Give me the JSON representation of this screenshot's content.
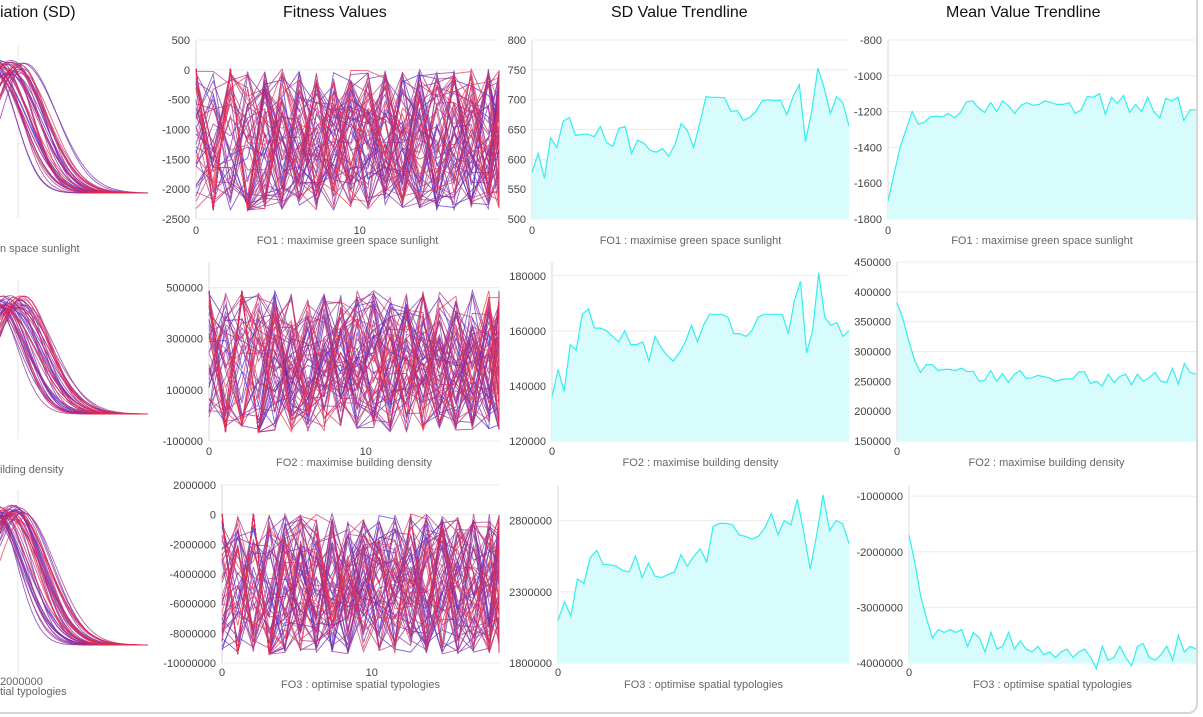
{
  "columns": {
    "sd_title": "iation (SD)",
    "fitness_title": "Fitness Values",
    "sd_trend_title": "SD Value Trendline",
    "mean_trend_title": "Mean Value Trendline"
  },
  "colors": {
    "trend": "#33eeee",
    "trend_fill": "#d8fbfb",
    "lines_blue": "#3a2ad8",
    "lines_red": "#e03a5a"
  },
  "sd_panels": [
    {
      "xlabel": "n space sunlight"
    },
    {
      "xlabel": "ilding density"
    },
    {
      "xlabel": "tial typologies",
      "tick": "2000000"
    }
  ],
  "chart_data": [
    {
      "type": "line",
      "title": "Fitness Values",
      "objective": "FO1",
      "xlabel": "FO1 : maximise green space sunlight",
      "yticks": [
        "500",
        "0",
        "-500",
        "-1000",
        "-1500",
        "-2000",
        "-2500"
      ],
      "ylim": [
        -2500,
        500
      ],
      "xticks": [
        "0",
        "10"
      ],
      "xlim": [
        0,
        18.5
      ],
      "n_lines": 60
    },
    {
      "type": "area",
      "title": "SD Value Trendline",
      "objective": "FO1",
      "xlabel": "FO1 : maximise green space sunlight",
      "yticks": [
        "800",
        "750",
        "700",
        "650",
        "600",
        "550",
        "500"
      ],
      "ylim": [
        500,
        800
      ],
      "xticks": [
        "0"
      ],
      "values": [
        578,
        610,
        568,
        636,
        620,
        664,
        670,
        640,
        642,
        642,
        638,
        655,
        628,
        622,
        652,
        655,
        610,
        632,
        627,
        615,
        612,
        618,
        605,
        625,
        660,
        648,
        620,
        660,
        705,
        704,
        704,
        703,
        680,
        682,
        665,
        670,
        680,
        698,
        700,
        698,
        699,
        675,
        705,
        725,
        630,
        680,
        753,
        720,
        677,
        705,
        695,
        656
      ]
    },
    {
      "type": "area",
      "title": "Mean Value Trendline",
      "objective": "FO1",
      "xlabel": "FO1 : maximise green space sunlight",
      "yticks": [
        "-800",
        "-1000",
        "-1200",
        "-1400",
        "-1600",
        "-1800"
      ],
      "ylim": [
        -1800,
        -800
      ],
      "xticks": [
        "0"
      ],
      "values": [
        -1700,
        -1550,
        -1400,
        -1300,
        -1200,
        -1270,
        -1260,
        -1230,
        -1225,
        -1230,
        -1210,
        -1235,
        -1205,
        -1145,
        -1140,
        -1180,
        -1205,
        -1150,
        -1200,
        -1140,
        -1170,
        -1210,
        -1165,
        -1150,
        -1165,
        -1160,
        -1140,
        -1150,
        -1160,
        -1160,
        -1150,
        -1210,
        -1190,
        -1115,
        -1120,
        -1100,
        -1215,
        -1120,
        -1155,
        -1110,
        -1205,
        -1160,
        -1200,
        -1120,
        -1200,
        -1235,
        -1125,
        -1140,
        -1120,
        -1250,
        -1190,
        -1190
      ]
    },
    {
      "type": "line",
      "title": "Fitness Values",
      "objective": "FO2",
      "xlabel": "FO2 : maximise building density",
      "yticks": [
        "500000",
        "300000",
        "100000",
        "-100000"
      ],
      "ylim": [
        -100000,
        600000
      ],
      "xticks": [
        "0",
        "10"
      ],
      "xlim": [
        0,
        18.5
      ],
      "n_lines": 60
    },
    {
      "type": "area",
      "title": "SD Value Trendline",
      "objective": "FO2",
      "xlabel": "FO2 : maximise building density",
      "yticks": [
        "180000",
        "160000",
        "140000",
        "120000"
      ],
      "ylim": [
        120000,
        185000
      ],
      "xticks": [
        "0"
      ],
      "values": [
        136000,
        146000,
        138000,
        155000,
        153000,
        166000,
        168000,
        161000,
        161000,
        160000,
        158000,
        156000,
        160000,
        155000,
        155000,
        156000,
        149000,
        158000,
        154000,
        151000,
        149000,
        152000,
        156000,
        162000,
        156000,
        162000,
        166000,
        166000,
        166000,
        165000,
        159000,
        159000,
        158000,
        160000,
        165000,
        166000,
        166000,
        166000,
        166000,
        159000,
        171000,
        178000,
        152000,
        160000,
        181000,
        165000,
        162000,
        163000,
        158000,
        160000
      ]
    },
    {
      "type": "area",
      "title": "Mean Value Trendline",
      "objective": "FO2",
      "xlabel": "FO2 : maximise building density",
      "yticks": [
        "450000",
        "400000",
        "350000",
        "300000",
        "250000",
        "200000",
        "150000"
      ],
      "ylim": [
        150000,
        450000
      ],
      "xticks": [
        "0"
      ],
      "values": [
        382000,
        355000,
        318000,
        285000,
        265000,
        278000,
        278000,
        268000,
        270000,
        270000,
        268000,
        272000,
        266000,
        267000,
        250000,
        252000,
        268000,
        250000,
        263000,
        248000,
        262000,
        268000,
        255000,
        256000,
        260000,
        258000,
        256000,
        250000,
        253000,
        254000,
        254000,
        266000,
        266000,
        246000,
        250000,
        242000,
        262000,
        248000,
        258000,
        262000,
        244000,
        262000,
        250000,
        256000,
        265000,
        250000,
        248000,
        272000,
        245000,
        280000,
        265000,
        262000
      ]
    },
    {
      "type": "line",
      "title": "Fitness Values",
      "objective": "FO3",
      "xlabel": "FO3 : optimise spatial typologies",
      "yticks": [
        "2000000",
        "0",
        "-2000000",
        "-4000000",
        "-6000000",
        "-8000000",
        "-10000000"
      ],
      "ylim": [
        -10000000,
        2000000
      ],
      "xticks": [
        "0",
        "10"
      ],
      "xlim": [
        0,
        18.5
      ],
      "n_lines": 60
    },
    {
      "type": "area",
      "title": "SD Value Trendline",
      "objective": "FO3",
      "xlabel": "FO3 : optimise spatial typologies",
      "yticks": [
        "2800000",
        "2300000",
        "1800000"
      ],
      "ylim": [
        1800000,
        3050000
      ],
      "xticks": [
        "0"
      ],
      "values": [
        2100000,
        2230000,
        2130000,
        2390000,
        2360000,
        2540000,
        2590000,
        2490000,
        2490000,
        2480000,
        2450000,
        2440000,
        2550000,
        2400000,
        2500000,
        2410000,
        2400000,
        2420000,
        2440000,
        2560000,
        2480000,
        2550000,
        2600000,
        2510000,
        2760000,
        2780000,
        2780000,
        2770000,
        2700000,
        2690000,
        2670000,
        2690000,
        2750000,
        2850000,
        2700000,
        2800000,
        2770000,
        2950000,
        2720000,
        2460000,
        2700000,
        2980000,
        2730000,
        2800000,
        2780000,
        2640000
      ]
    },
    {
      "type": "area",
      "title": "Mean Value Trendline",
      "objective": "FO3",
      "xlabel": "FO3 : optimise spatial typologies",
      "yticks": [
        "-1000000",
        "-2000000",
        "-3000000",
        "-4000000"
      ],
      "ylim": [
        -4000000,
        -800000
      ],
      "xticks": [
        "0"
      ],
      "values": [
        -1700000,
        -2200000,
        -2800000,
        -3200000,
        -3550000,
        -3400000,
        -3450000,
        -3400000,
        -3450000,
        -3400000,
        -3700000,
        -3450000,
        -3550000,
        -3800000,
        -3450000,
        -3750000,
        -3700000,
        -3450000,
        -3750000,
        -3600000,
        -3750000,
        -3800000,
        -3700000,
        -3850000,
        -3800000,
        -3900000,
        -3800000,
        -3750000,
        -3900000,
        -3800000,
        -3750000,
        -3900000,
        -4100000,
        -3700000,
        -3950000,
        -3900000,
        -3700000,
        -3900000,
        -4050000,
        -3700000,
        -3650000,
        -3900000,
        -3950000,
        -3850000,
        -3700000,
        -3950000,
        -3500000,
        -3800000,
        -3700000,
        -3750000
      ]
    }
  ]
}
